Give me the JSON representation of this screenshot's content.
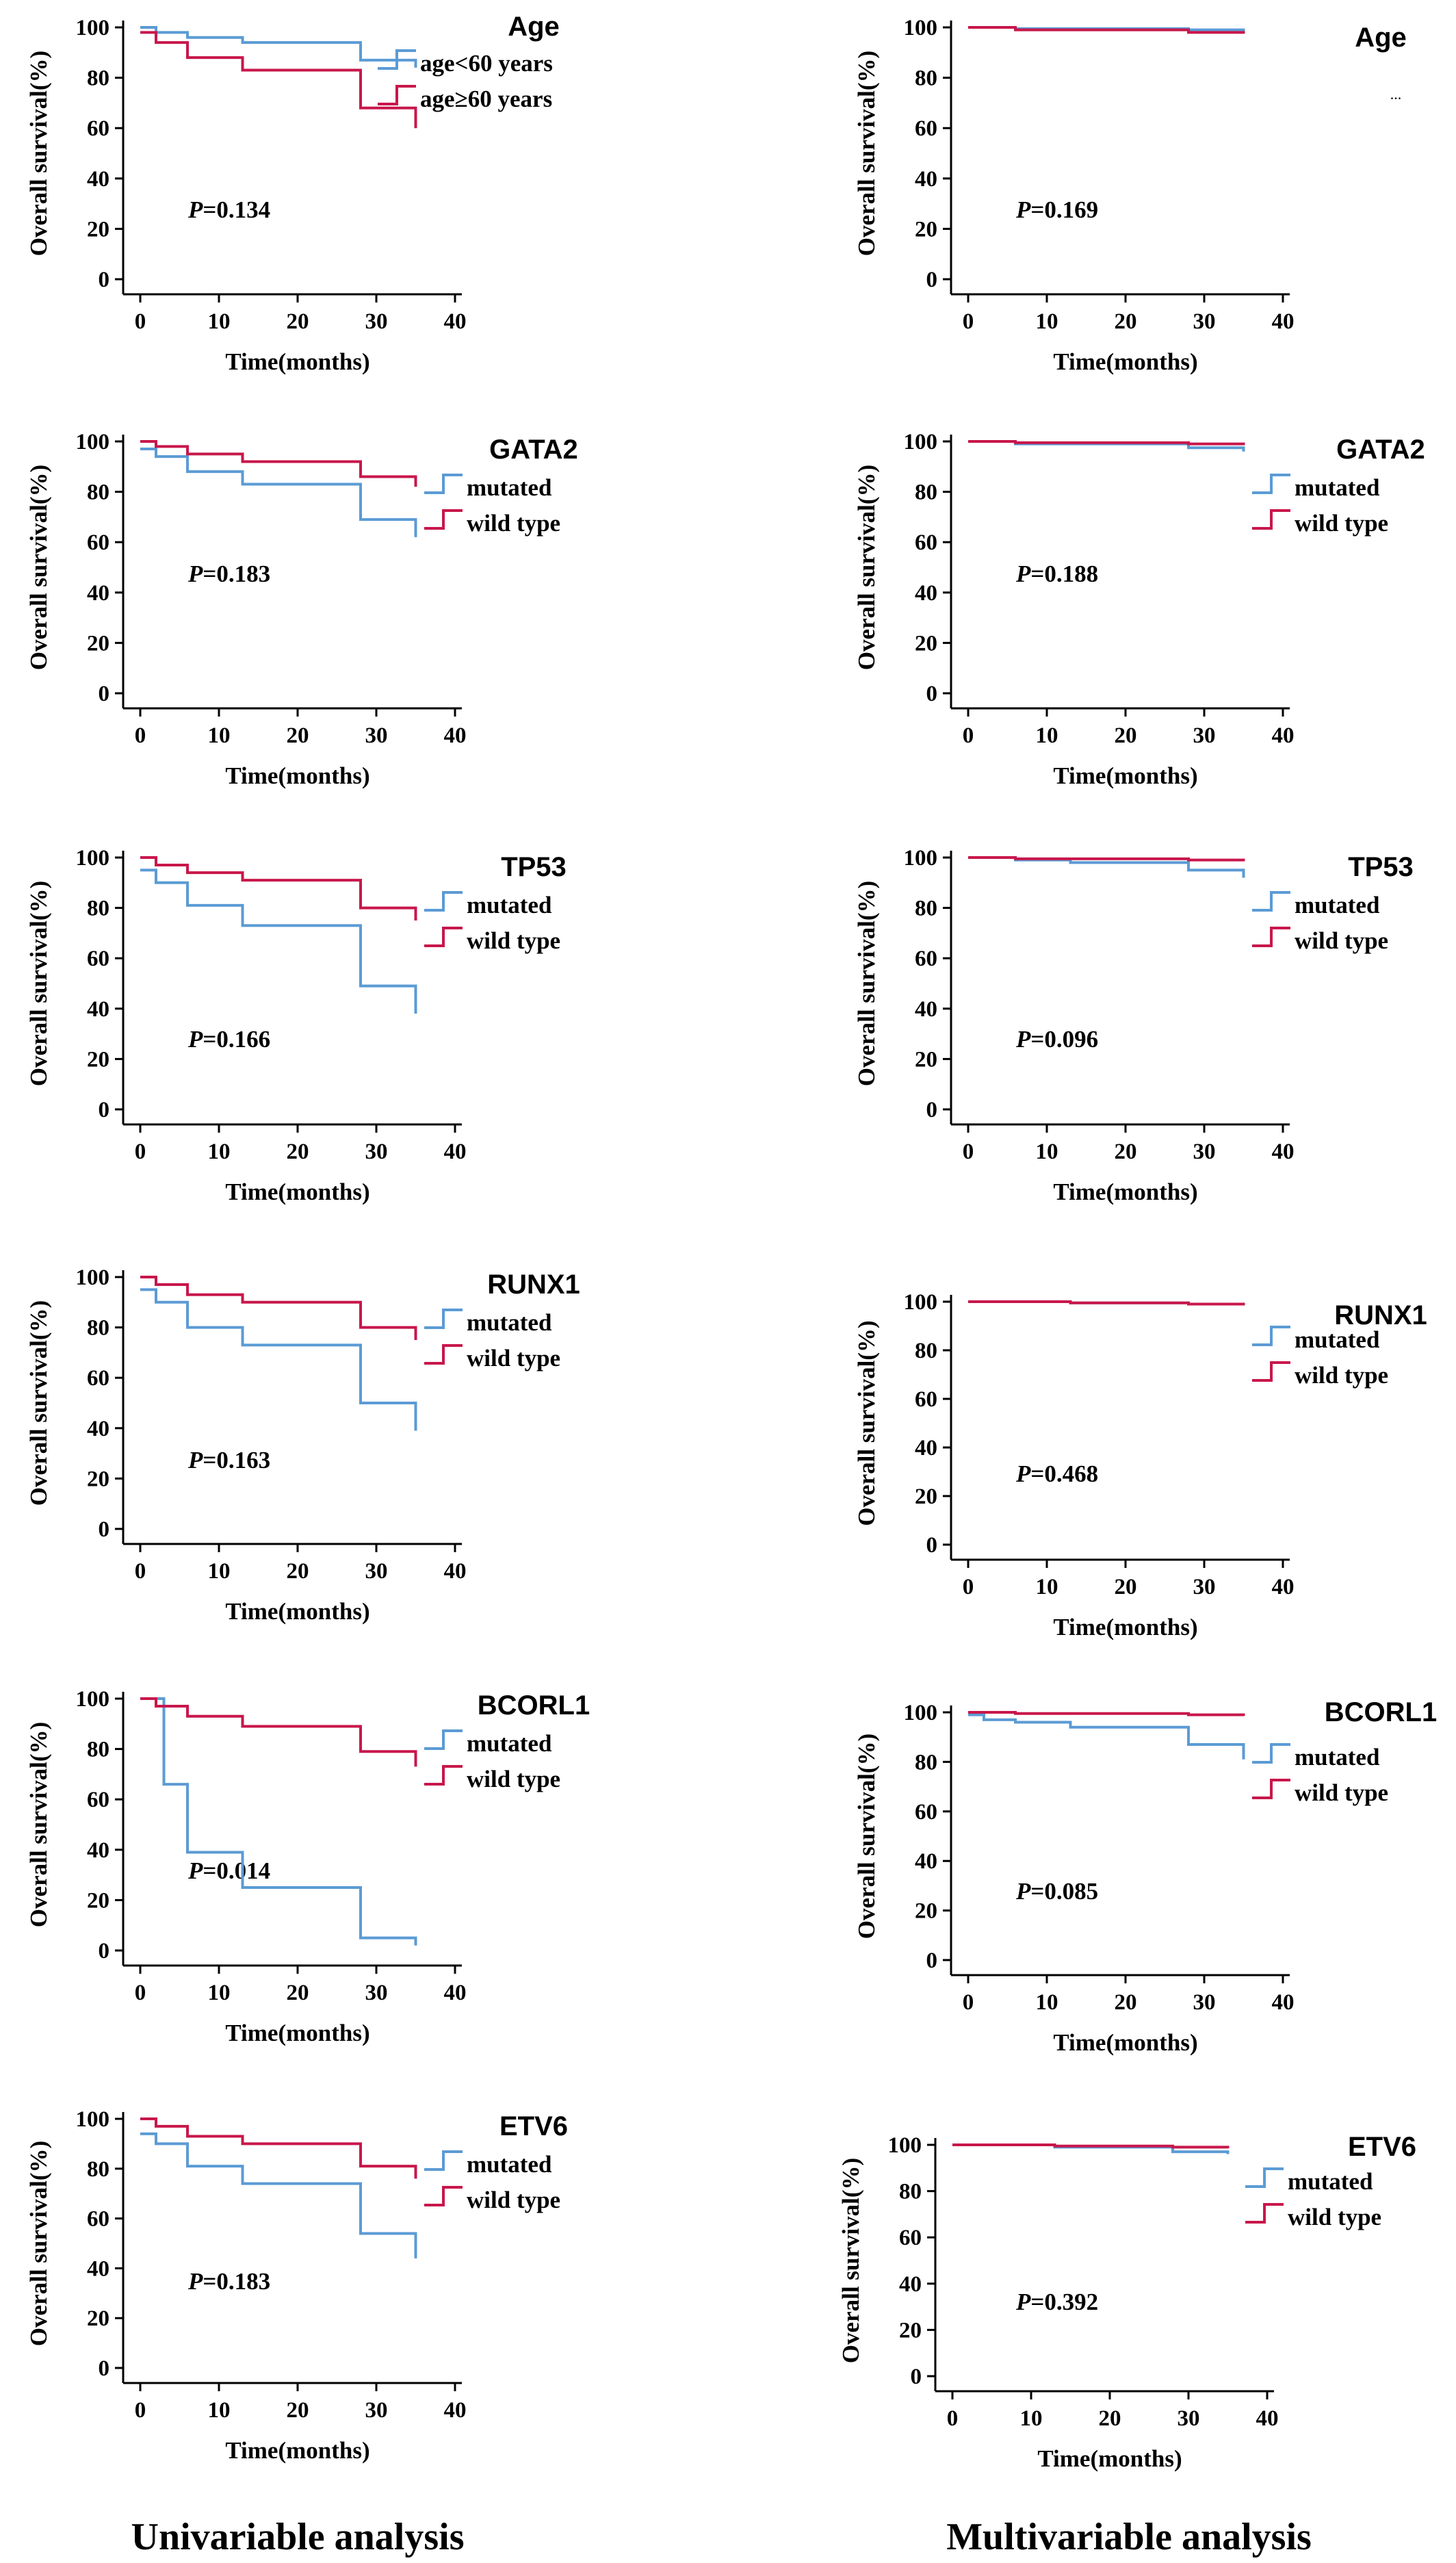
{
  "colors": {
    "blue": "#5b9bd5",
    "red": "#c8174b",
    "axis": "#000000"
  },
  "chart_data": [
    {
      "id": "uni-age",
      "column": "Univariable analysis",
      "type": "line",
      "step": true,
      "title": "Age",
      "ylabel": "Overall survival(%)",
      "xlabel": "Time(months)",
      "xlim": [
        0,
        40
      ],
      "ylim": [
        0,
        100
      ],
      "xticks": [
        "0",
        "10",
        "20",
        "30",
        "40"
      ],
      "yticks": [
        "0",
        "20",
        "40",
        "60",
        "80",
        "100"
      ],
      "p_label": "P",
      "p_value": "=0.134",
      "series": [
        {
          "name": "age<60 years",
          "color": "blue",
          "x": [
            0,
            2,
            6,
            13,
            28,
            35
          ],
          "y": [
            100,
            98,
            96,
            94,
            87,
            84
          ]
        },
        {
          "name": "age≥60 years",
          "color": "red",
          "x": [
            0,
            2,
            6,
            13,
            28,
            35
          ],
          "y": [
            98,
            94,
            88,
            83,
            68,
            60
          ]
        }
      ]
    },
    {
      "id": "multi-age",
      "column": "Multivariable analysis",
      "type": "line",
      "step": true,
      "title": "Age",
      "ylabel": "Overall survival(%)",
      "xlabel": "Time(months)",
      "xlim": [
        0,
        40
      ],
      "ylim": [
        0,
        100
      ],
      "xticks": [
        "0",
        "10",
        "20",
        "30",
        "40"
      ],
      "yticks": [
        "0",
        "20",
        "40",
        "60",
        "80",
        "100"
      ],
      "p_label": "P",
      "p_value": "=0.169",
      "legend_note": "...",
      "series": [
        {
          "name": "",
          "color": "blue",
          "x": [
            0,
            6,
            28,
            35
          ],
          "y": [
            100,
            99.5,
            99,
            98.5
          ]
        },
        {
          "name": "",
          "color": "red",
          "x": [
            0,
            6,
            28,
            35
          ],
          "y": [
            100,
            99,
            98,
            97.5
          ]
        }
      ]
    },
    {
      "id": "uni-gata2",
      "column": "Univariable analysis",
      "type": "line",
      "step": true,
      "title": "GATA2",
      "ylabel": "Overall survival(%)",
      "xlabel": "Time(months)",
      "xlim": [
        0,
        40
      ],
      "ylim": [
        0,
        100
      ],
      "xticks": [
        "0",
        "10",
        "20",
        "30",
        "40"
      ],
      "yticks": [
        "0",
        "20",
        "40",
        "60",
        "80",
        "100"
      ],
      "p_label": "P",
      "p_value": "=0.183",
      "series": [
        {
          "name": "mutated",
          "color": "blue",
          "x": [
            0,
            2,
            6,
            13,
            28,
            35
          ],
          "y": [
            97,
            94,
            88,
            83,
            69,
            62
          ]
        },
        {
          "name": "wild type",
          "color": "red",
          "x": [
            0,
            2,
            6,
            13,
            28,
            35
          ],
          "y": [
            100,
            98,
            95,
            92,
            86,
            82
          ]
        }
      ]
    },
    {
      "id": "multi-gata2",
      "column": "Multivariable analysis",
      "type": "line",
      "step": true,
      "title": "GATA2",
      "ylabel": "Overall survival(%)",
      "xlabel": "Time(months)",
      "xlim": [
        0,
        40
      ],
      "ylim": [
        0,
        100
      ],
      "xticks": [
        "0",
        "10",
        "20",
        "30",
        "40"
      ],
      "yticks": [
        "0",
        "20",
        "40",
        "60",
        "80",
        "100"
      ],
      "p_label": "P",
      "p_value": "=0.188",
      "series": [
        {
          "name": "mutated",
          "color": "blue",
          "x": [
            0,
            6,
            28,
            35
          ],
          "y": [
            100,
            99,
            97.5,
            96
          ]
        },
        {
          "name": "wild type",
          "color": "red",
          "x": [
            0,
            6,
            28,
            35
          ],
          "y": [
            100,
            99.5,
            99,
            98.5
          ]
        }
      ]
    },
    {
      "id": "uni-tp53",
      "column": "Univariable analysis",
      "type": "line",
      "step": true,
      "title": "TP53",
      "ylabel": "Overall survival(%)",
      "xlabel": "Time(months)",
      "xlim": [
        0,
        40
      ],
      "ylim": [
        0,
        100
      ],
      "xticks": [
        "0",
        "10",
        "20",
        "30",
        "40"
      ],
      "yticks": [
        "0",
        "20",
        "40",
        "60",
        "80",
        "100"
      ],
      "p_label": "P",
      "p_value": "=0.166",
      "series": [
        {
          "name": "mutated",
          "color": "blue",
          "x": [
            0,
            2,
            6,
            13,
            28,
            35
          ],
          "y": [
            95,
            90,
            81,
            73,
            49,
            38
          ]
        },
        {
          "name": "wild type",
          "color": "red",
          "x": [
            0,
            2,
            6,
            13,
            28,
            35
          ],
          "y": [
            100,
            97,
            94,
            91,
            80,
            75
          ]
        }
      ]
    },
    {
      "id": "multi-tp53",
      "column": "Multivariable analysis",
      "type": "line",
      "step": true,
      "title": "TP53",
      "ylabel": "Overall survival(%)",
      "xlabel": "Time(months)",
      "xlim": [
        0,
        40
      ],
      "ylim": [
        0,
        100
      ],
      "xticks": [
        "0",
        "10",
        "20",
        "30",
        "40"
      ],
      "yticks": [
        "0",
        "20",
        "40",
        "60",
        "80",
        "100"
      ],
      "p_label": "P",
      "p_value": "=0.096",
      "series": [
        {
          "name": "mutated",
          "color": "blue",
          "x": [
            0,
            6,
            13,
            28,
            35
          ],
          "y": [
            100,
            99,
            98,
            95,
            92
          ]
        },
        {
          "name": "wild type",
          "color": "red",
          "x": [
            0,
            6,
            28,
            35
          ],
          "y": [
            100,
            99.5,
            99,
            98.5
          ]
        }
      ]
    },
    {
      "id": "uni-runx1",
      "column": "Univariable analysis",
      "type": "line",
      "step": true,
      "title": "RUNX1",
      "ylabel": "Overall survival(%)",
      "xlabel": "Time(months)",
      "xlim": [
        0,
        40
      ],
      "ylim": [
        0,
        100
      ],
      "xticks": [
        "0",
        "10",
        "20",
        "30",
        "40"
      ],
      "yticks": [
        "0",
        "20",
        "40",
        "60",
        "80",
        "100"
      ],
      "p_label": "P",
      "p_value": "=0.163",
      "series": [
        {
          "name": "mutated",
          "color": "blue",
          "x": [
            0,
            2,
            6,
            13,
            28,
            35
          ],
          "y": [
            95,
            90,
            80,
            73,
            50,
            39
          ]
        },
        {
          "name": "wild type",
          "color": "red",
          "x": [
            0,
            2,
            6,
            13,
            28,
            35
          ],
          "y": [
            100,
            97,
            93,
            90,
            80,
            75
          ]
        }
      ]
    },
    {
      "id": "multi-runx1",
      "column": "Multivariable analysis",
      "type": "line",
      "step": true,
      "title": "RUNX1",
      "ylabel": "Overall survival(%)",
      "xlabel": "Time(months)",
      "xlim": [
        0,
        40
      ],
      "ylim": [
        0,
        100
      ],
      "xticks": [
        "0",
        "10",
        "20",
        "30",
        "40"
      ],
      "yticks": [
        "0",
        "20",
        "40",
        "60",
        "80",
        "100"
      ],
      "p_label": "P",
      "p_value": "=0.468",
      "series": [
        {
          "name": "mutated",
          "color": "blue",
          "x": [
            0,
            13,
            28,
            35
          ],
          "y": [
            100,
            99.5,
            99,
            98.5
          ]
        },
        {
          "name": "wild type",
          "color": "red",
          "x": [
            0,
            13,
            28,
            35
          ],
          "y": [
            100,
            99.5,
            99,
            98.5
          ]
        }
      ]
    },
    {
      "id": "uni-bcorl1",
      "column": "Univariable analysis",
      "type": "line",
      "step": true,
      "title": "BCORL1",
      "ylabel": "Overall survival(%)",
      "xlabel": "Time(months)",
      "xlim": [
        0,
        40
      ],
      "ylim": [
        0,
        100
      ],
      "xticks": [
        "0",
        "10",
        "20",
        "30",
        "40"
      ],
      "yticks": [
        "0",
        "20",
        "40",
        "60",
        "80",
        "100"
      ],
      "p_label": "P",
      "p_value": "=0.014",
      "series": [
        {
          "name": "mutated",
          "color": "blue",
          "x": [
            0,
            3,
            6,
            13,
            28,
            35
          ],
          "y": [
            100,
            66,
            39,
            25,
            5,
            2
          ]
        },
        {
          "name": "wild type",
          "color": "red",
          "x": [
            0,
            2,
            6,
            13,
            28,
            35
          ],
          "y": [
            100,
            97,
            93,
            89,
            79,
            73
          ]
        }
      ]
    },
    {
      "id": "multi-bcorl1",
      "column": "Multivariable analysis",
      "type": "line",
      "step": true,
      "title": "BCORL1",
      "ylabel": "Overall survival(%)",
      "xlabel": "Time(months)",
      "xlim": [
        0,
        40
      ],
      "ylim": [
        0,
        100
      ],
      "xticks": [
        "0",
        "10",
        "20",
        "30",
        "40"
      ],
      "yticks": [
        "0",
        "20",
        "40",
        "60",
        "80",
        "100"
      ],
      "p_label": "P",
      "p_value": "=0.085",
      "series": [
        {
          "name": "mutated",
          "color": "blue",
          "x": [
            0,
            2,
            6,
            13,
            28,
            35
          ],
          "y": [
            99,
            97,
            96,
            94,
            87,
            81
          ]
        },
        {
          "name": "wild type",
          "color": "red",
          "x": [
            0,
            6,
            28,
            35
          ],
          "y": [
            100,
            99.5,
            99,
            98.5
          ]
        }
      ]
    },
    {
      "id": "uni-etv6",
      "column": "Univariable analysis",
      "type": "line",
      "step": true,
      "title": "ETV6",
      "ylabel": "Overall survival(%)",
      "xlabel": "Time(months)",
      "xlim": [
        0,
        40
      ],
      "ylim": [
        0,
        100
      ],
      "xticks": [
        "0",
        "10",
        "20",
        "30",
        "40"
      ],
      "yticks": [
        "0",
        "20",
        "40",
        "60",
        "80",
        "100"
      ],
      "p_label": "P",
      "p_value": "=0.183",
      "series": [
        {
          "name": "mutated",
          "color": "blue",
          "x": [
            0,
            2,
            6,
            13,
            28,
            35
          ],
          "y": [
            94,
            90,
            81,
            74,
            54,
            44
          ]
        },
        {
          "name": "wild type",
          "color": "red",
          "x": [
            0,
            2,
            6,
            13,
            28,
            35
          ],
          "y": [
            100,
            97,
            93,
            90,
            81,
            76
          ]
        }
      ]
    },
    {
      "id": "multi-etv6",
      "column": "Multivariable analysis",
      "type": "line",
      "step": true,
      "title": "ETV6",
      "ylabel": "Overall survival(%)",
      "xlabel": "Time(months)",
      "xlim": [
        0,
        40
      ],
      "ylim": [
        0,
        100
      ],
      "xticks": [
        "0",
        "10",
        "20",
        "30",
        "40"
      ],
      "yticks": [
        "0",
        "20",
        "40",
        "60",
        "80",
        "100"
      ],
      "p_label": "P",
      "p_value": "=0.392",
      "series": [
        {
          "name": "mutated",
          "color": "blue",
          "x": [
            0,
            13,
            28,
            35
          ],
          "y": [
            100,
            99,
            97,
            96
          ]
        },
        {
          "name": "wild type",
          "color": "red",
          "x": [
            0,
            13,
            28,
            35
          ],
          "y": [
            100,
            99.5,
            99,
            98.5
          ]
        }
      ]
    }
  ],
  "captions": {
    "left": "Univariable analysis",
    "right": "Multivariable analysis"
  }
}
